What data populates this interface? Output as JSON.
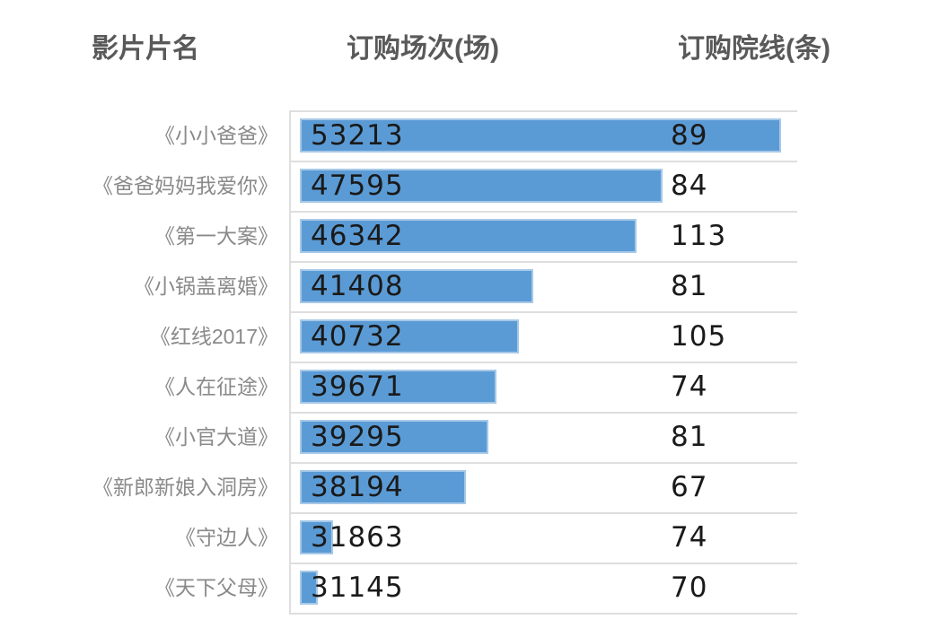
{
  "table": {
    "columns": [
      {
        "label": "影片片名"
      },
      {
        "label": "订购场次(场)"
      },
      {
        "label": "订购院线(条)"
      }
    ],
    "rows": [
      {
        "title": "《小小爸爸》",
        "sessions": "53213",
        "cinemas": "89"
      },
      {
        "title": "《爸爸妈妈我爱你》",
        "sessions": "47595",
        "cinemas": "84"
      },
      {
        "title": "《第一大案》",
        "sessions": "46342",
        "cinemas": "113"
      },
      {
        "title": "《小锅盖离婚》",
        "sessions": "41408",
        "cinemas": "81"
      },
      {
        "title": "《红线2017》",
        "sessions": "40732",
        "cinemas": "105"
      },
      {
        "title": "《人在征途》",
        "sessions": "39671",
        "cinemas": "74"
      },
      {
        "title": "《小官大道》",
        "sessions": "39295",
        "cinemas": "81"
      },
      {
        "title": "《新郎新娘入洞房》",
        "sessions": "38194",
        "cinemas": "67"
      },
      {
        "title": "《守边人》",
        "sessions": "31863",
        "cinemas": "74"
      },
      {
        "title": "《天下父母》",
        "sessions": "31145",
        "cinemas": "70"
      }
    ]
  },
  "chart_data": {
    "type": "bar",
    "orientation": "horizontal",
    "title": "",
    "categories": [
      "《小小爸爸》",
      "《爸爸妈妈我爱你》",
      "《第一大案》",
      "《小锅盖离婚》",
      "《红线2017》",
      "《人在征途》",
      "《小官大道》",
      "《新郎新娘入洞房》",
      "《守边人》",
      "《天下父母》"
    ],
    "series": [
      {
        "name": "订购场次(场)",
        "values": [
          53213,
          47595,
          46342,
          41408,
          40732,
          39671,
          39295,
          38194,
          31863,
          31145
        ]
      },
      {
        "name": "订购院线(条)",
        "values": [
          89,
          84,
          113,
          81,
          105,
          74,
          81,
          67,
          74,
          70
        ]
      }
    ],
    "bar_axis": {
      "min": 30300,
      "max": 54000
    },
    "legend": "none",
    "grid": "row-separator-lines",
    "value_labels": "inside-bar-left"
  },
  "colors": {
    "bar_fill": "#5B9BD5",
    "bar_border": "#A6C9E8",
    "header_text": "#595959",
    "label_text": "#8A8A8A",
    "value_text": "#1A1A1A",
    "grid_line": "#DEDEDE"
  }
}
